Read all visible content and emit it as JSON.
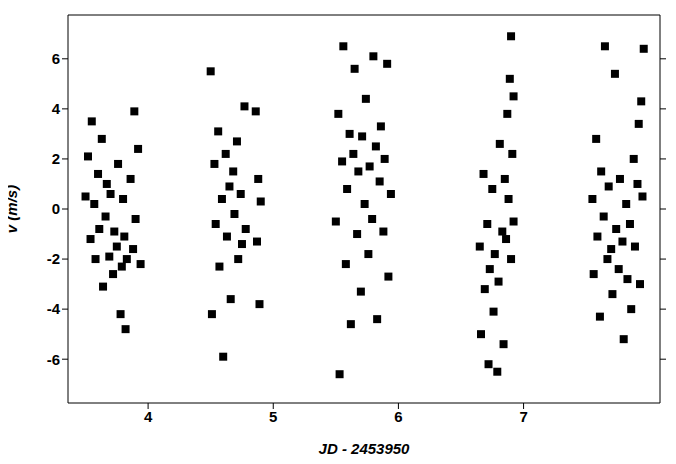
{
  "chart_data": {
    "type": "scatter",
    "x_label": "JD - 2453950",
    "y_label": "v (m/s)",
    "xlim": [
      3.36,
      8.09
    ],
    "xticks": [
      4,
      5,
      6,
      7
    ],
    "ylim": [
      -7.75,
      7.75
    ],
    "yticks": [
      -6,
      -4,
      -2,
      0,
      2,
      4,
      6
    ],
    "grid": false,
    "color": "#000000",
    "marker": "square",
    "x": [
      3.5,
      3.52,
      3.54,
      3.55,
      3.57,
      3.58,
      3.6,
      3.61,
      3.63,
      3.64,
      3.66,
      3.67,
      3.69,
      3.7,
      3.72,
      3.73,
      3.75,
      3.76,
      3.78,
      3.79,
      3.8,
      3.81,
      3.82,
      3.83,
      3.86,
      3.88,
      3.89,
      3.9,
      3.92,
      3.94,
      4.5,
      4.51,
      4.53,
      4.54,
      4.56,
      4.57,
      4.59,
      4.6,
      4.62,
      4.63,
      4.65,
      4.66,
      4.68,
      4.69,
      4.71,
      4.72,
      4.74,
      4.75,
      4.77,
      4.78,
      4.86,
      4.87,
      4.88,
      4.89,
      4.9,
      5.5,
      5.52,
      5.53,
      5.55,
      5.56,
      5.58,
      5.59,
      5.61,
      5.62,
      5.64,
      5.65,
      5.67,
      5.68,
      5.7,
      5.71,
      5.73,
      5.74,
      5.76,
      5.77,
      5.79,
      5.8,
      5.82,
      5.83,
      5.85,
      5.86,
      5.88,
      5.89,
      5.91,
      5.92,
      5.94,
      6.65,
      6.66,
      6.68,
      6.69,
      6.71,
      6.72,
      6.73,
      6.75,
      6.76,
      6.77,
      6.79,
      6.8,
      6.81,
      6.83,
      6.84,
      6.85,
      6.86,
      6.87,
      6.88,
      6.89,
      6.9,
      6.9,
      6.91,
      6.92,
      6.92,
      7.55,
      7.56,
      7.58,
      7.59,
      7.61,
      7.62,
      7.64,
      7.65,
      7.67,
      7.68,
      7.7,
      7.71,
      7.73,
      7.74,
      7.76,
      7.77,
      7.79,
      7.8,
      7.82,
      7.83,
      7.85,
      7.86,
      7.88,
      7.89,
      7.91,
      7.92,
      7.93,
      7.94,
      7.95,
      7.96
    ],
    "values": [
      0.5,
      2.1,
      -1.2,
      3.5,
      0.2,
      -2.0,
      1.4,
      -0.8,
      2.8,
      -3.1,
      -0.3,
      1.0,
      -1.9,
      0.6,
      -2.6,
      -0.9,
      -1.5,
      1.8,
      -4.2,
      -2.3,
      0.4,
      -1.1,
      -4.8,
      -2.0,
      1.2,
      -1.6,
      3.9,
      -0.4,
      2.4,
      -2.2,
      5.5,
      -4.2,
      1.8,
      -0.6,
      3.1,
      -2.3,
      0.4,
      -5.9,
      2.2,
      -1.1,
      0.9,
      -3.6,
      1.5,
      -0.2,
      2.7,
      -2.0,
      0.6,
      -1.4,
      4.1,
      -0.8,
      3.9,
      -1.3,
      1.2,
      -3.8,
      0.3,
      -0.5,
      3.8,
      -6.6,
      1.9,
      6.5,
      -2.2,
      0.8,
      3.0,
      -4.6,
      2.2,
      5.6,
      -1.0,
      1.5,
      -3.3,
      2.9,
      0.2,
      4.4,
      -1.8,
      1.7,
      -0.4,
      6.1,
      2.5,
      -4.4,
      1.1,
      3.3,
      -0.9,
      2.0,
      5.8,
      -2.7,
      0.6,
      -1.5,
      -5.0,
      1.4,
      -3.2,
      -0.6,
      -6.2,
      -2.4,
      0.8,
      -4.1,
      -1.8,
      -6.5,
      -2.9,
      2.6,
      -0.9,
      -5.4,
      1.2,
      -1.2,
      3.8,
      0.4,
      5.2,
      -2.0,
      6.9,
      2.2,
      -0.5,
      4.5,
      0.4,
      -2.6,
      2.8,
      -1.1,
      -4.3,
      1.5,
      -0.3,
      6.5,
      -2.0,
      0.9,
      -1.6,
      -3.4,
      5.4,
      -0.8,
      -2.4,
      1.2,
      -1.3,
      -5.2,
      0.2,
      -2.8,
      -0.6,
      -4.0,
      2.0,
      -1.5,
      1.0,
      3.4,
      -3.0,
      4.3,
      0.5,
      6.4
    ]
  }
}
